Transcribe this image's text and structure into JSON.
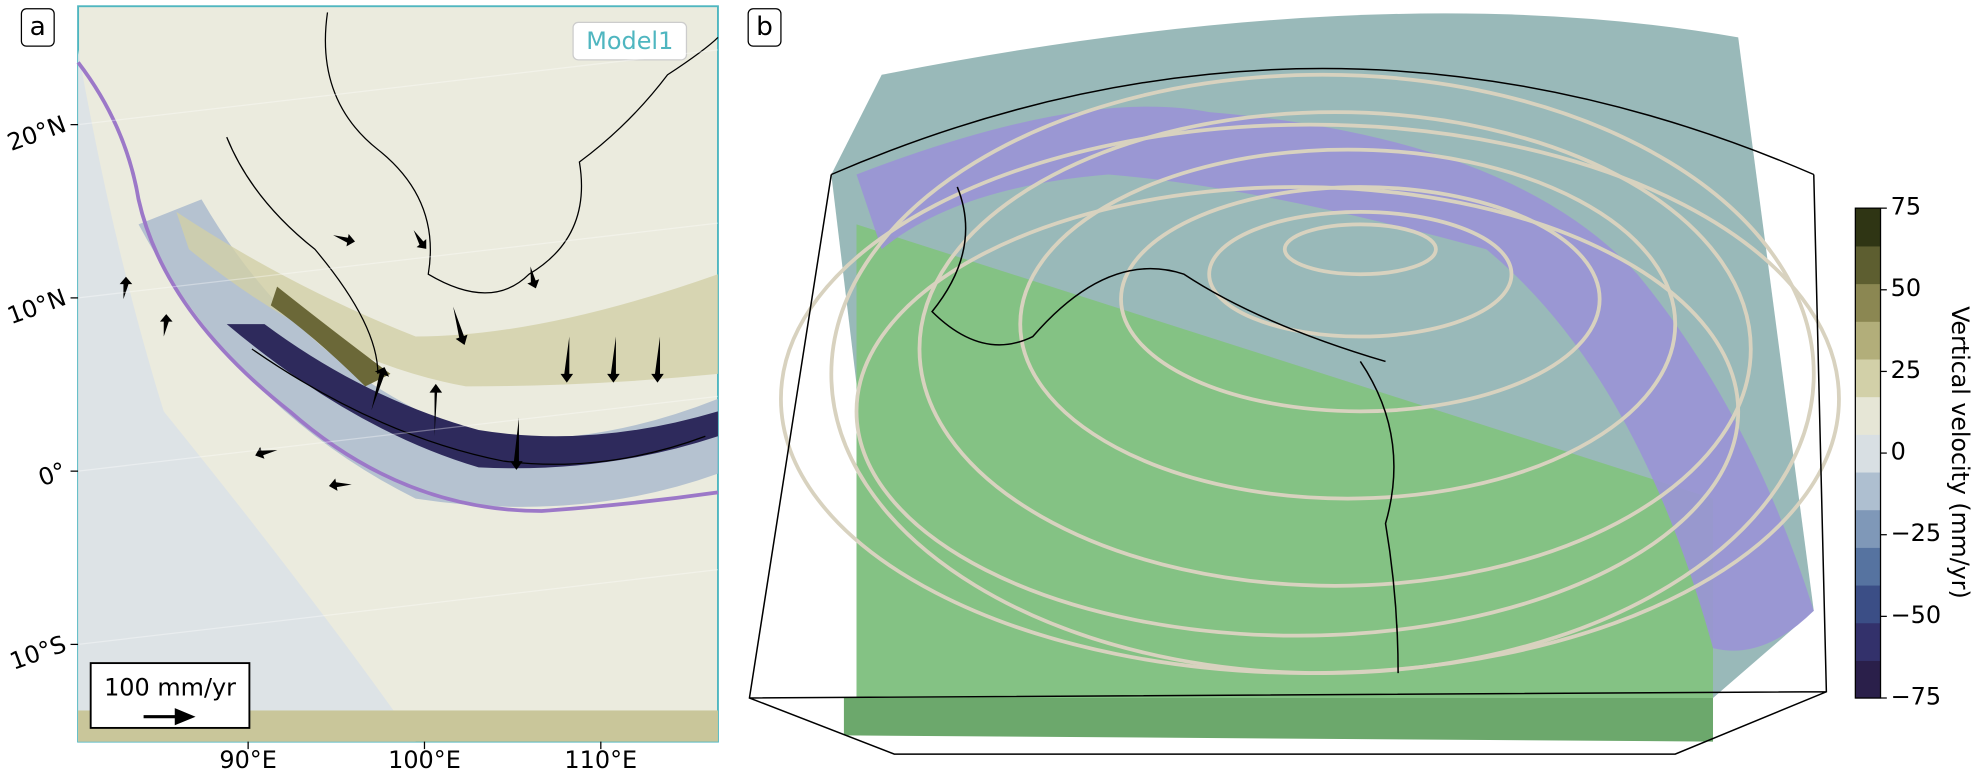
{
  "chart_data": {
    "type": "figure",
    "panel_a": {
      "label": "a",
      "model_label": "Model1",
      "scale_label": "100 mm/yr",
      "lat_ticks": [
        {
          "value": 20,
          "label": "20°N"
        },
        {
          "value": 10,
          "label": "10°N"
        },
        {
          "value": 0,
          "label": "0°"
        },
        {
          "value": -10,
          "label": "10°S"
        }
      ],
      "lon_ticks": [
        {
          "value": 90,
          "label": "90°E"
        },
        {
          "value": 100,
          "label": "100°E"
        },
        {
          "value": 110,
          "label": "110°E"
        }
      ]
    },
    "panel_b": {
      "label": "b"
    },
    "colorbar": {
      "label": "Vertical velocity (mm/yr)",
      "lim": [
        -75,
        75
      ],
      "ticks": [
        75,
        50,
        25,
        0,
        {
          "value": -25,
          "label": "−25"
        },
        {
          "value": -50,
          "label": "−50"
        },
        {
          "value": -75,
          "label": "−75"
        }
      ],
      "colors": [
        "#2a1f4a",
        "#33316b",
        "#3b4e86",
        "#5673a0",
        "#7f98b8",
        "#aebfd0",
        "#d8dfe3",
        "#e6e6d6",
        "#d2d0a8",
        "#b2ae7a",
        "#8b8752",
        "#5d5e30",
        "#2f3514"
      ]
    }
  }
}
